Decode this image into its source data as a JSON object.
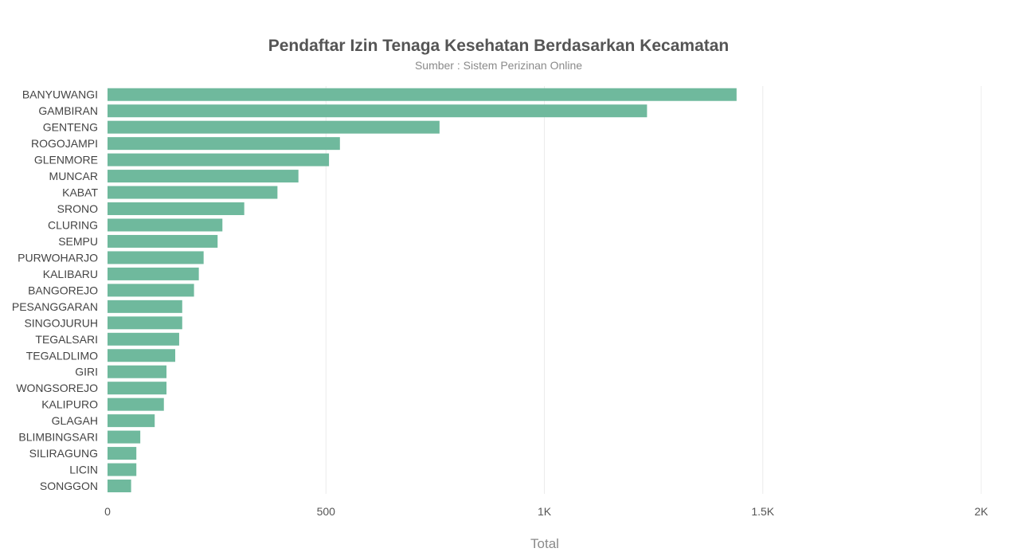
{
  "chart_data": {
    "type": "bar",
    "orientation": "horizontal",
    "title": "Pendaftar Izin Tenaga Kesehatan Berdasarkan Kecamatan",
    "subtitle": "Sumber : Sistem Perizinan Online",
    "xlabel": "Total",
    "ylabel": "",
    "xlim": [
      0,
      2000
    ],
    "xticks": [
      {
        "value": 0,
        "label": "0"
      },
      {
        "value": 500,
        "label": "500"
      },
      {
        "value": 1000,
        "label": "1K"
      },
      {
        "value": 1500,
        "label": "1.5K"
      },
      {
        "value": 2000,
        "label": "2K"
      }
    ],
    "grid": true,
    "bar_color": "#6fb99d",
    "categories": [
      "BANYUWANGI",
      "GAMBIRAN",
      "GENTENG",
      "ROGOJAMPI",
      "GLENMORE",
      "MUNCAR",
      "KABAT",
      "SRONO",
      "CLURING",
      "SEMPU",
      "PURWOHARJO",
      "KALIBARU",
      "BANGOREJO",
      "PESANGGARAN",
      "SINGOJURUH",
      "TEGALSARI",
      "TEGALDLIMO",
      "GIRI",
      "WONGSOREJO",
      "KALIPURO",
      "GLAGAH",
      "BLIMBINGSARI",
      "SILIRAGUNG",
      "LICIN",
      "SONGGON"
    ],
    "values": [
      1440,
      1235,
      760,
      532,
      507,
      437,
      389,
      313,
      263,
      252,
      220,
      209,
      198,
      171,
      171,
      164,
      155,
      135,
      135,
      129,
      108,
      75,
      66,
      66,
      54
    ]
  }
}
